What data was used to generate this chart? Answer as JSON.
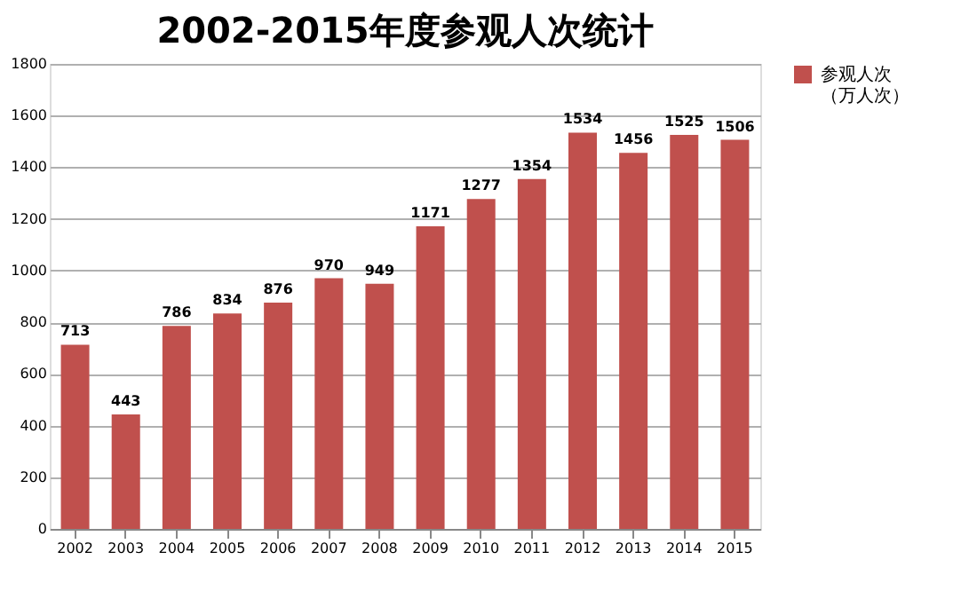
{
  "chart_data": {
    "type": "bar",
    "title": "2002-2015年度参观人次统计",
    "categories": [
      "2002",
      "2003",
      "2004",
      "2005",
      "2006",
      "2007",
      "2008",
      "2009",
      "2010",
      "2011",
      "2012",
      "2013",
      "2014",
      "2015"
    ],
    "series": [
      {
        "name": "参观人次（万人次）",
        "color": "#c0504d",
        "values": [
          713,
          443,
          786,
          834,
          876,
          970,
          949,
          1171,
          1277,
          1354,
          1534,
          1456,
          1525,
          1506
        ]
      }
    ],
    "ylim": [
      0,
      1800
    ],
    "yticks": [
      0,
      200,
      400,
      600,
      800,
      1000,
      1200,
      1400,
      1600,
      1800
    ],
    "grid": "y",
    "legend": "right",
    "data_labels": true
  }
}
